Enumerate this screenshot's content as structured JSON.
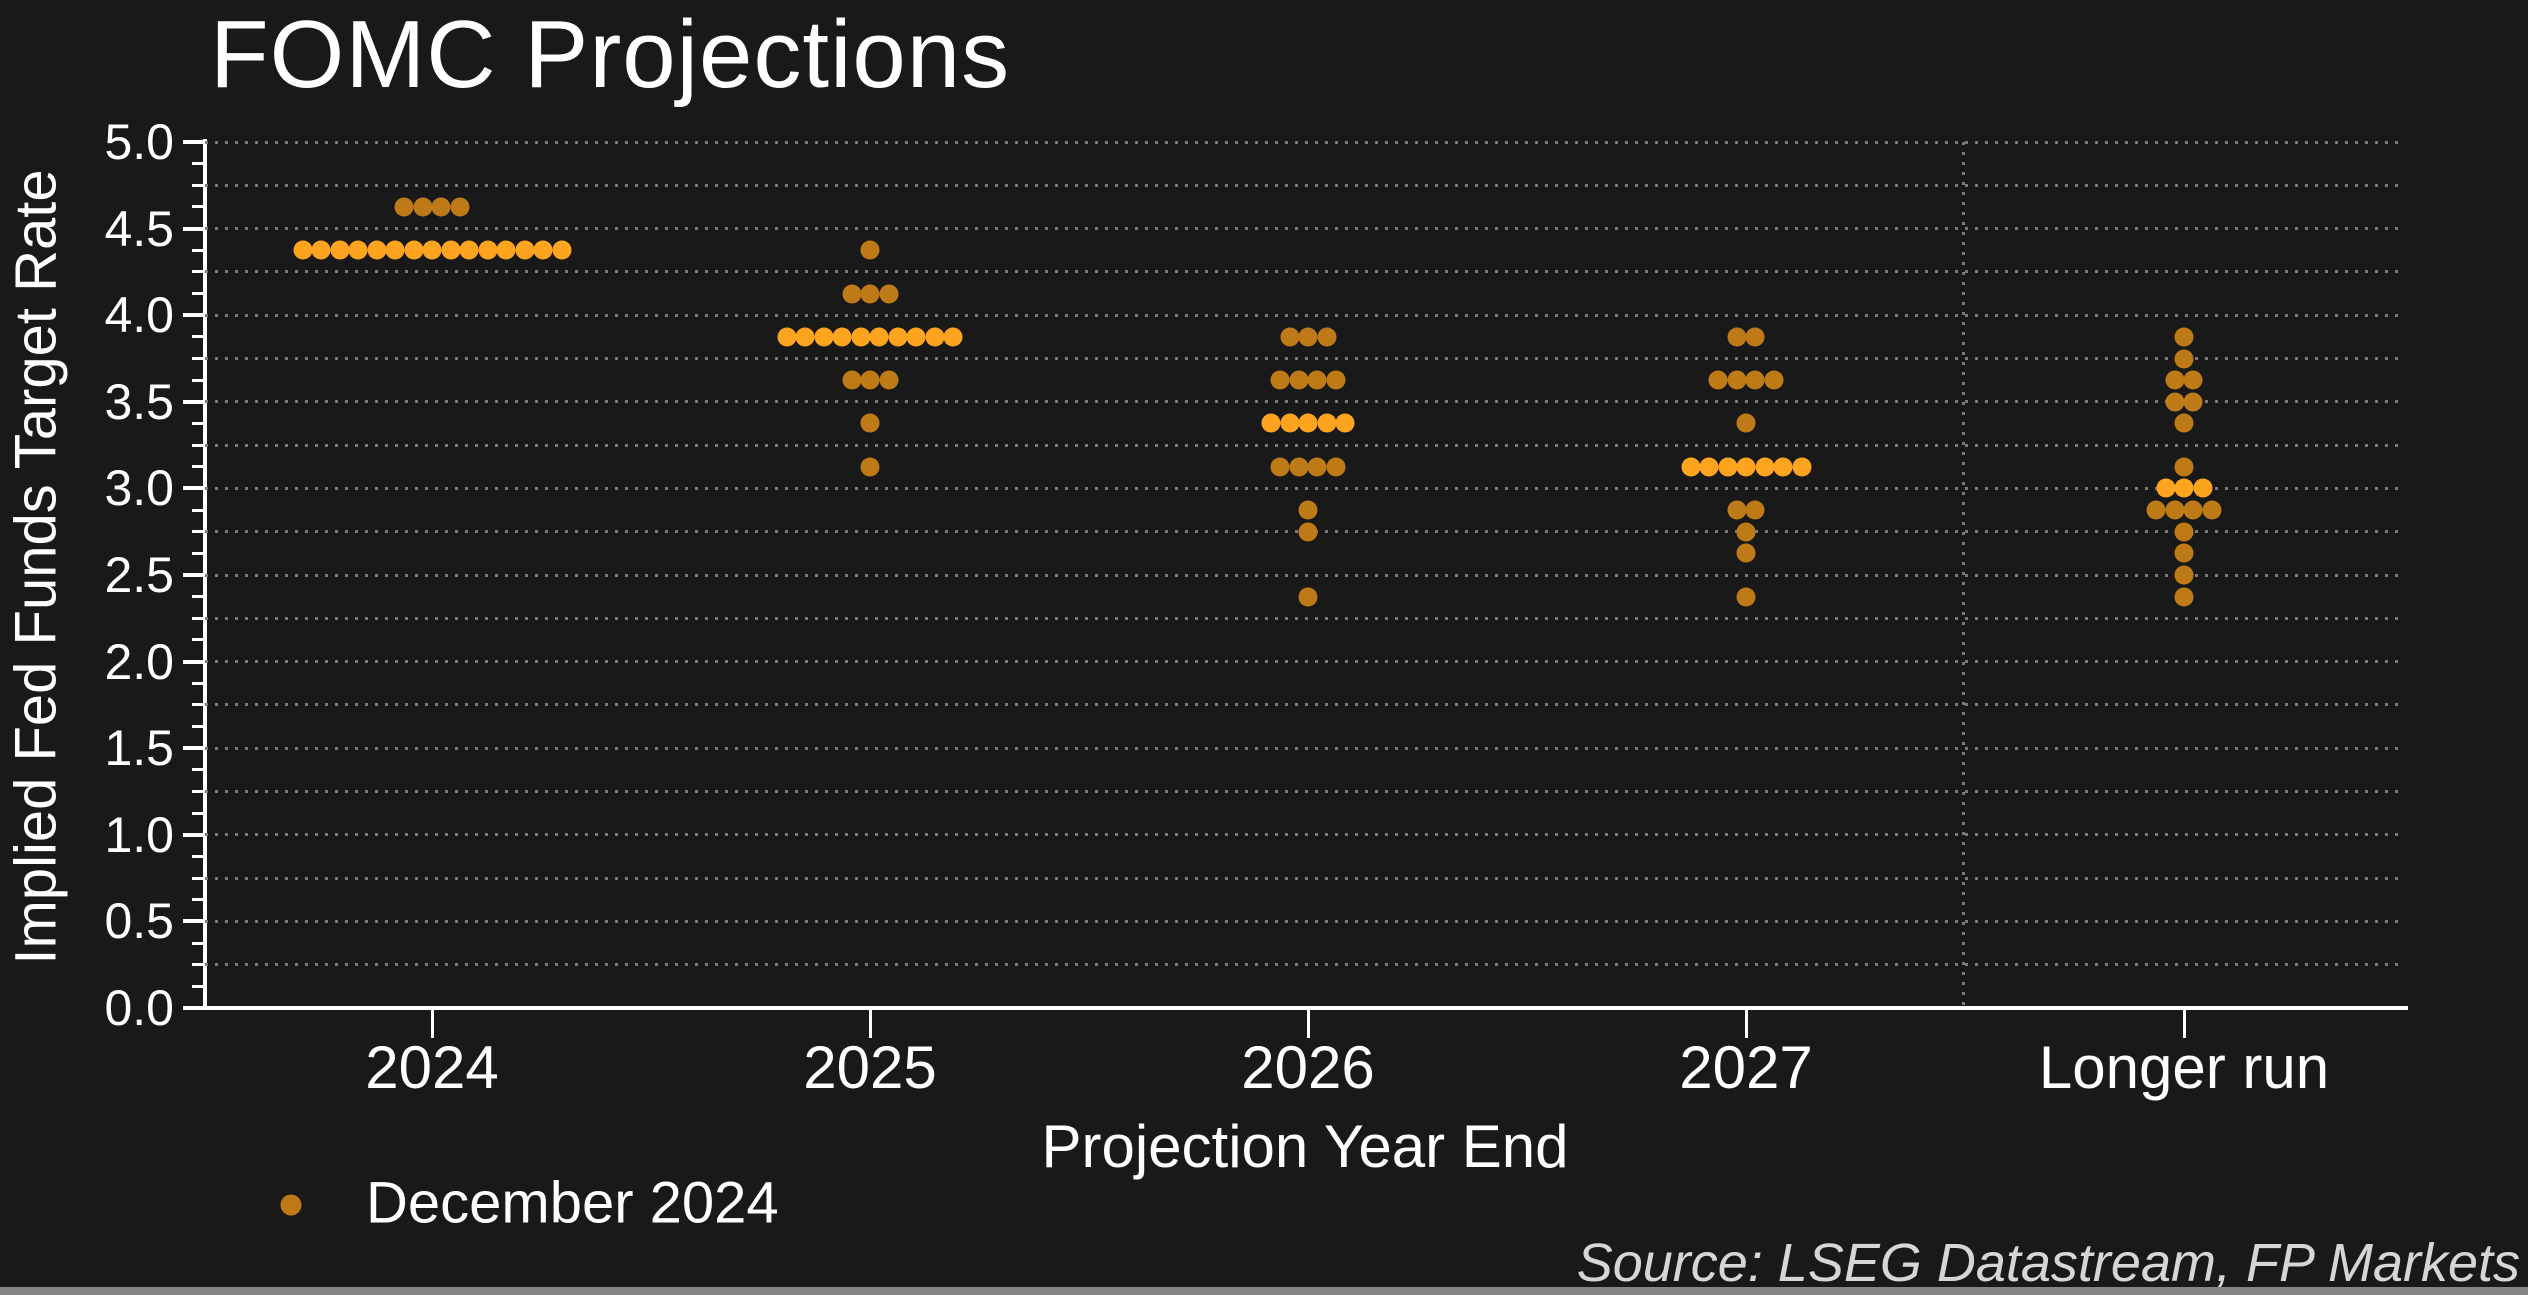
{
  "title": "FOMC Projections",
  "x_axis": {
    "title": "Projection Year End",
    "categories": [
      "2024",
      "2025",
      "2026",
      "2027",
      "Longer run"
    ]
  },
  "y_axis": {
    "title": "Implied Fed Funds Target Rate",
    "min": 0.0,
    "max": 5.0,
    "major_tick_step": 0.5,
    "minor_tick_step": 0.125,
    "grid_step": 0.25,
    "tick_labels": [
      "0.0",
      "0.5",
      "1.0",
      "1.5",
      "2.0",
      "2.5",
      "3.0",
      "3.5",
      "4.0",
      "4.5",
      "5.0"
    ]
  },
  "legend": {
    "label": "December 2024",
    "marker": "dot"
  },
  "source": "Source: LSEG Datastream, FP Markets",
  "colors": {
    "background": "#191919",
    "axis": "#ffffff",
    "grid": "#7a7a7a",
    "text": "#ffffff",
    "source_text": "#d6d6d6",
    "dot": "#bd7a16",
    "dot_median": "#ffa41e"
  },
  "chart_data": {
    "type": "scatter",
    "subtype": "fomc-dot-plot",
    "title": "FOMC Projections",
    "xlabel": "Projection Year End",
    "ylabel": "Implied Fed Funds Target Rate",
    "ylim": [
      0.0,
      5.0
    ],
    "grid": "dotted, every 0.25 on y; vertical dotted separator before Longer run",
    "legend_position": "bottom-left",
    "series_name": "December 2024",
    "columns": [
      {
        "category": "2024",
        "dots": [
          {
            "rate": 4.625,
            "count": 4,
            "median": false
          },
          {
            "rate": 4.375,
            "count": 15,
            "median": true
          }
        ]
      },
      {
        "category": "2025",
        "dots": [
          {
            "rate": 4.375,
            "count": 1,
            "median": false
          },
          {
            "rate": 4.125,
            "count": 3,
            "median": false
          },
          {
            "rate": 3.875,
            "count": 10,
            "median": true
          },
          {
            "rate": 3.625,
            "count": 3,
            "median": false
          },
          {
            "rate": 3.375,
            "count": 1,
            "median": false
          },
          {
            "rate": 3.125,
            "count": 1,
            "median": false
          }
        ]
      },
      {
        "category": "2026",
        "dots": [
          {
            "rate": 3.875,
            "count": 3,
            "median": false
          },
          {
            "rate": 3.625,
            "count": 4,
            "median": false
          },
          {
            "rate": 3.375,
            "count": 5,
            "median": true
          },
          {
            "rate": 3.125,
            "count": 4,
            "median": false
          },
          {
            "rate": 2.875,
            "count": 1,
            "median": false
          },
          {
            "rate": 2.75,
            "count": 1,
            "median": false
          },
          {
            "rate": 2.375,
            "count": 1,
            "median": false
          }
        ]
      },
      {
        "category": "2027",
        "dots": [
          {
            "rate": 3.875,
            "count": 2,
            "median": false
          },
          {
            "rate": 3.625,
            "count": 4,
            "median": false
          },
          {
            "rate": 3.375,
            "count": 1,
            "median": false
          },
          {
            "rate": 3.125,
            "count": 7,
            "median": true
          },
          {
            "rate": 2.875,
            "count": 2,
            "median": false
          },
          {
            "rate": 2.75,
            "count": 1,
            "median": false
          },
          {
            "rate": 2.625,
            "count": 1,
            "median": false
          },
          {
            "rate": 2.375,
            "count": 1,
            "median": false
          }
        ]
      },
      {
        "category": "Longer run",
        "dots": [
          {
            "rate": 3.875,
            "count": 1,
            "median": false
          },
          {
            "rate": 3.75,
            "count": 1,
            "median": false
          },
          {
            "rate": 3.625,
            "count": 2,
            "median": false
          },
          {
            "rate": 3.5,
            "count": 2,
            "median": false
          },
          {
            "rate": 3.375,
            "count": 1,
            "median": false
          },
          {
            "rate": 3.125,
            "count": 1,
            "median": false
          },
          {
            "rate": 3.0,
            "count": 3,
            "median": true
          },
          {
            "rate": 2.875,
            "count": 4,
            "median": false
          },
          {
            "rate": 2.75,
            "count": 1,
            "median": false
          },
          {
            "rate": 2.625,
            "count": 1,
            "median": false
          },
          {
            "rate": 2.5,
            "count": 1,
            "median": false
          },
          {
            "rate": 2.375,
            "count": 1,
            "median": false
          }
        ]
      }
    ]
  }
}
